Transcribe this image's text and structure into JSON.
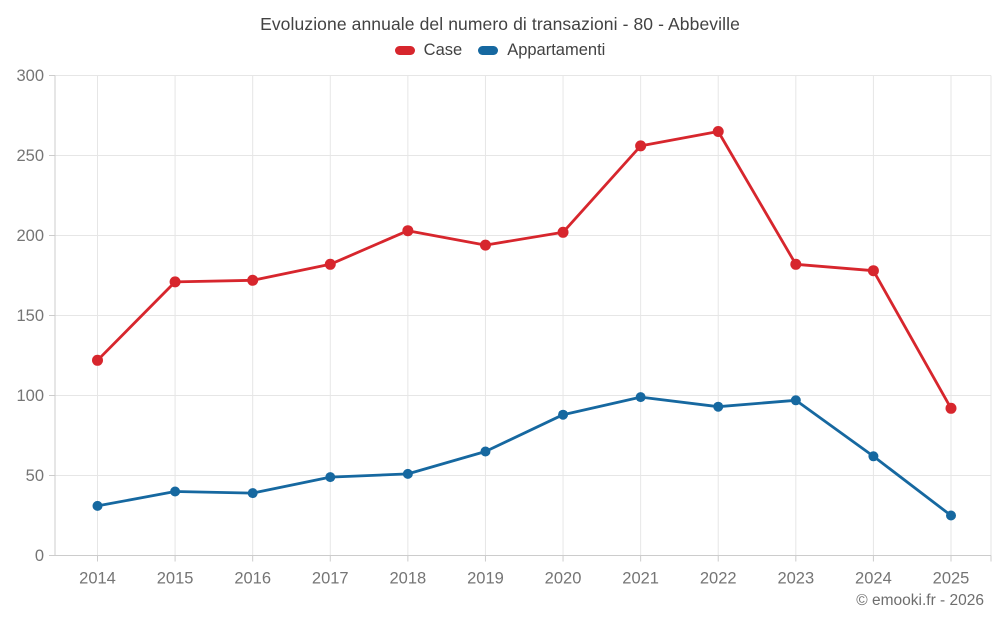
{
  "title": "Evoluzione annuale del numero di transazioni - 80 - Abbeville",
  "footer": "© emooki.fr - 2026",
  "legend": {
    "items": [
      {
        "label": "Case",
        "color": "#d7262d"
      },
      {
        "label": "Appartamenti",
        "color": "#1668a0"
      }
    ]
  },
  "colors": {
    "case_red": "#d7262d",
    "appartamenti_blue": "#1668a0",
    "gridline": "#e6e6e6",
    "axis_line": "#cccccc",
    "tick_label": "#757575",
    "title_text": "#424242",
    "footer_text": "#6e6e6e"
  },
  "chart_data": {
    "type": "line",
    "title": "Evoluzione annuale del numero di transazioni - 80 - Abbeville",
    "categories": [
      "2014",
      "2015",
      "2016",
      "2017",
      "2018",
      "2019",
      "2020",
      "2021",
      "2022",
      "2023",
      "2024",
      "2025"
    ],
    "series": [
      {
        "name": "Case",
        "color": "#d7262d",
        "marker_radius": 5.5,
        "values": [
          122,
          171,
          172,
          182,
          203,
          194,
          202,
          256,
          265,
          182,
          178,
          92
        ]
      },
      {
        "name": "Appartamenti",
        "color": "#1668a0",
        "marker_radius": 5,
        "values": [
          31,
          40,
          39,
          49,
          51,
          65,
          88,
          99,
          93,
          97,
          62,
          25
        ]
      }
    ],
    "xlabel": "",
    "ylabel": "",
    "ylim": [
      0,
      300
    ],
    "yticks": [
      0,
      50,
      100,
      150,
      200,
      250,
      300
    ],
    "grid": true,
    "legend_position": "top"
  }
}
